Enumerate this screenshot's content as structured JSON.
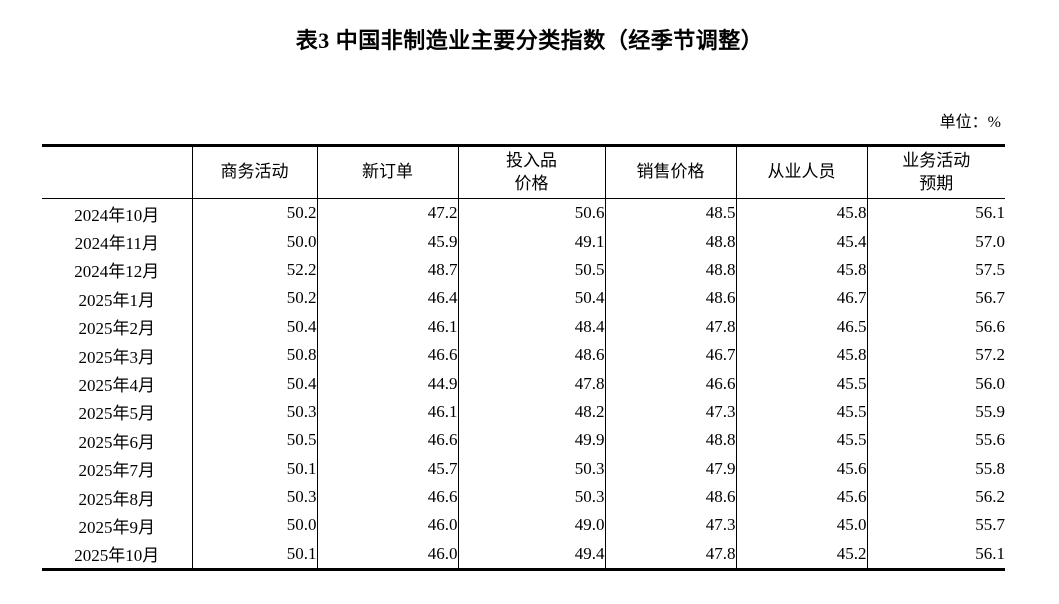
{
  "title": "表3 中国非制造业主要分类指数（经季节调整）",
  "unit_label": "单位：%",
  "table": {
    "row_header_label": "",
    "columns": [
      "商务活动",
      "新订单",
      "投入品\n价格",
      "销售价格",
      "从业人员",
      "业务活动\n预期"
    ],
    "rows": [
      {
        "label": "2024年10月",
        "values": [
          "50.2",
          "47.2",
          "50.6",
          "48.5",
          "45.8",
          "56.1"
        ]
      },
      {
        "label": "2024年11月",
        "values": [
          "50.0",
          "45.9",
          "49.1",
          "48.8",
          "45.4",
          "57.0"
        ]
      },
      {
        "label": "2024年12月",
        "values": [
          "52.2",
          "48.7",
          "50.5",
          "48.8",
          "45.8",
          "57.5"
        ]
      },
      {
        "label": "2025年1月",
        "values": [
          "50.2",
          "46.4",
          "50.4",
          "48.6",
          "46.7",
          "56.7"
        ]
      },
      {
        "label": "2025年2月",
        "values": [
          "50.4",
          "46.1",
          "48.4",
          "47.8",
          "46.5",
          "56.6"
        ]
      },
      {
        "label": "2025年3月",
        "values": [
          "50.8",
          "46.6",
          "48.6",
          "46.7",
          "45.8",
          "57.2"
        ]
      },
      {
        "label": "2025年4月",
        "values": [
          "50.4",
          "44.9",
          "47.8",
          "46.6",
          "45.5",
          "56.0"
        ]
      },
      {
        "label": "2025年5月",
        "values": [
          "50.3",
          "46.1",
          "48.2",
          "47.3",
          "45.5",
          "55.9"
        ]
      },
      {
        "label": "2025年6月",
        "values": [
          "50.5",
          "46.6",
          "49.9",
          "48.8",
          "45.5",
          "55.6"
        ]
      },
      {
        "label": "2025年7月",
        "values": [
          "50.1",
          "45.7",
          "50.3",
          "47.9",
          "45.6",
          "55.8"
        ]
      },
      {
        "label": "2025年8月",
        "values": [
          "50.3",
          "46.6",
          "50.3",
          "48.6",
          "45.6",
          "56.2"
        ]
      },
      {
        "label": "2025年9月",
        "values": [
          "50.0",
          "46.0",
          "49.0",
          "47.3",
          "45.0",
          "55.7"
        ]
      },
      {
        "label": "2025年10月",
        "values": [
          "50.1",
          "46.0",
          "49.4",
          "47.8",
          "45.2",
          "56.1"
        ]
      }
    ]
  }
}
